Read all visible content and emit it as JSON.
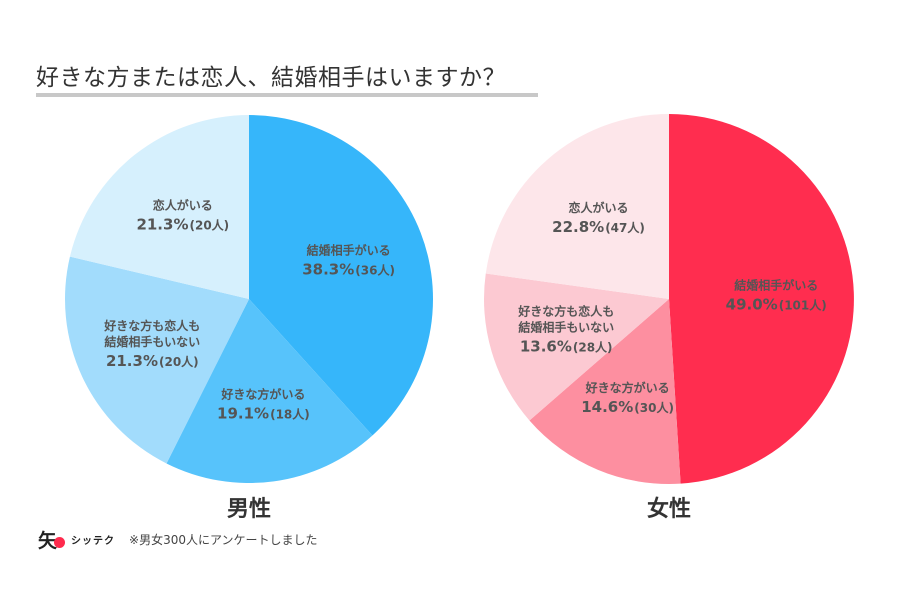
{
  "title": "好きな方または恋人、結婚相手はいますか？",
  "footer": {
    "logo_kanji": "矢",
    "logo_text": "シッテク",
    "note": "※男女300人にアンケートしました"
  },
  "chart_data": [
    {
      "type": "pie",
      "title": "男性",
      "slices": [
        {
          "label": [
            "結婚相手がいる"
          ],
          "percent": 38.3,
          "percent_text": "38.3%",
          "count_text": "(36人)",
          "color": "#36b6fa"
        },
        {
          "label": [
            "好きな方がいる"
          ],
          "percent": 19.1,
          "percent_text": "19.1%",
          "count_text": "(18人)",
          "color": "#57c3fb"
        },
        {
          "label": [
            "好きな方も恋人も",
            "結婚相手もいない"
          ],
          "percent": 21.3,
          "percent_text": "21.3%",
          "count_text": "(20人)",
          "color": "#a2dcfc"
        },
        {
          "label": [
            "恋人がいる"
          ],
          "percent": 21.3,
          "percent_text": "21.3%",
          "count_text": "(20人)",
          "color": "#d6f0fd"
        }
      ]
    },
    {
      "type": "pie",
      "title": "女性",
      "slices": [
        {
          "label": [
            "結婚相手がいる"
          ],
          "percent": 49.0,
          "percent_text": "49.0%",
          "count_text": "(101人)",
          "color": "#ff2d4f"
        },
        {
          "label": [
            "好きな方がいる"
          ],
          "percent": 14.6,
          "percent_text": "14.6%",
          "count_text": "(30人)",
          "color": "#fd8fa0"
        },
        {
          "label": [
            "好きな方も恋人も",
            "結婚相手もいない"
          ],
          "percent": 13.6,
          "percent_text": "13.6%",
          "count_text": "(28人)",
          "color": "#fcc9d2"
        },
        {
          "label": [
            "恋人がいる"
          ],
          "percent": 22.8,
          "percent_text": "22.8%",
          "count_text": "(47人)",
          "color": "#fde6ea"
        }
      ]
    }
  ]
}
